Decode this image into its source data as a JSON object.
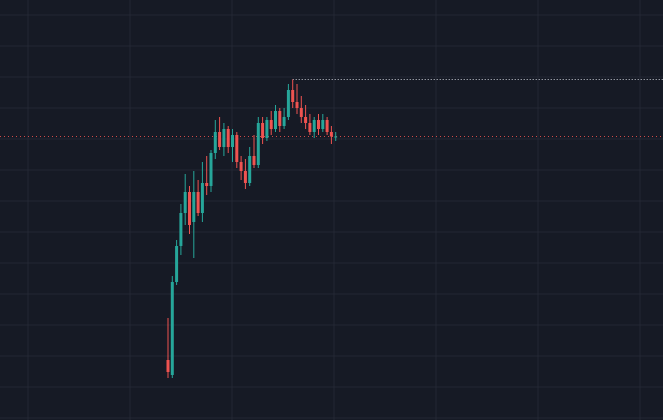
{
  "colors": {
    "background": "#161a25",
    "grid": "#232733",
    "up": "#26a69a",
    "down": "#ef5350",
    "high_line": "#c8ccd4",
    "last_price_line": "#ef5350"
  },
  "chart_data": {
    "type": "candlestick",
    "grid": true,
    "axes_visible": false,
    "price_range": [
      0,
      140
    ],
    "reference_lines": {
      "session_high": 113.5,
      "last_price": 94.5
    },
    "candles": [
      {
        "o": 20,
        "h": 34,
        "l": 14,
        "c": 16
      },
      {
        "o": 15,
        "h": 48,
        "l": 14,
        "c": 46
      },
      {
        "o": 46,
        "h": 60,
        "l": 45,
        "c": 58
      },
      {
        "o": 58,
        "h": 72,
        "l": 55,
        "c": 69
      },
      {
        "o": 69,
        "h": 82,
        "l": 65,
        "c": 76
      },
      {
        "o": 76,
        "h": 78,
        "l": 62,
        "c": 65
      },
      {
        "o": 66,
        "h": 83,
        "l": 54,
        "c": 76
      },
      {
        "o": 76,
        "h": 80,
        "l": 68,
        "c": 69
      },
      {
        "o": 69,
        "h": 86,
        "l": 66,
        "c": 79
      },
      {
        "o": 79,
        "h": 88,
        "l": 75,
        "c": 78
      },
      {
        "o": 78,
        "h": 90,
        "l": 76,
        "c": 89
      },
      {
        "o": 89,
        "h": 100,
        "l": 87,
        "c": 96
      },
      {
        "o": 96,
        "h": 101,
        "l": 90,
        "c": 91
      },
      {
        "o": 91,
        "h": 99,
        "l": 88,
        "c": 97
      },
      {
        "o": 97,
        "h": 98,
        "l": 89,
        "c": 91
      },
      {
        "o": 91,
        "h": 97,
        "l": 86,
        "c": 95
      },
      {
        "o": 95,
        "h": 96,
        "l": 84,
        "c": 86
      },
      {
        "o": 86,
        "h": 88,
        "l": 80,
        "c": 83
      },
      {
        "o": 83,
        "h": 87,
        "l": 77,
        "c": 79
      },
      {
        "o": 79,
        "h": 91,
        "l": 78,
        "c": 88
      },
      {
        "o": 88,
        "h": 95,
        "l": 84,
        "c": 85
      },
      {
        "o": 85,
        "h": 101,
        "l": 84,
        "c": 99
      },
      {
        "o": 99,
        "h": 101,
        "l": 92,
        "c": 94
      },
      {
        "o": 94,
        "h": 101,
        "l": 93,
        "c": 100
      },
      {
        "o": 100,
        "h": 103,
        "l": 95,
        "c": 97
      },
      {
        "o": 97,
        "h": 105,
        "l": 96,
        "c": 103
      },
      {
        "o": 103,
        "h": 104,
        "l": 96,
        "c": 98
      },
      {
        "o": 98,
        "h": 104,
        "l": 97,
        "c": 101
      },
      {
        "o": 101,
        "h": 112,
        "l": 100,
        "c": 110
      },
      {
        "o": 110,
        "h": 113.5,
        "l": 104,
        "c": 106
      },
      {
        "o": 106,
        "h": 112,
        "l": 102,
        "c": 104
      },
      {
        "o": 104,
        "h": 108,
        "l": 99,
        "c": 101
      },
      {
        "o": 101,
        "h": 105,
        "l": 97,
        "c": 99
      },
      {
        "o": 99,
        "h": 102,
        "l": 95,
        "c": 96
      },
      {
        "o": 96,
        "h": 101,
        "l": 94,
        "c": 100
      },
      {
        "o": 100,
        "h": 102,
        "l": 95,
        "c": 97
      },
      {
        "o": 97,
        "h": 102,
        "l": 96,
        "c": 100
      },
      {
        "o": 100,
        "h": 101,
        "l": 95,
        "c": 96
      },
      {
        "o": 96,
        "h": 98,
        "l": 92,
        "c": 94.5
      },
      {
        "o": 94.5,
        "h": 96,
        "l": 93,
        "c": 94.5
      }
    ]
  }
}
